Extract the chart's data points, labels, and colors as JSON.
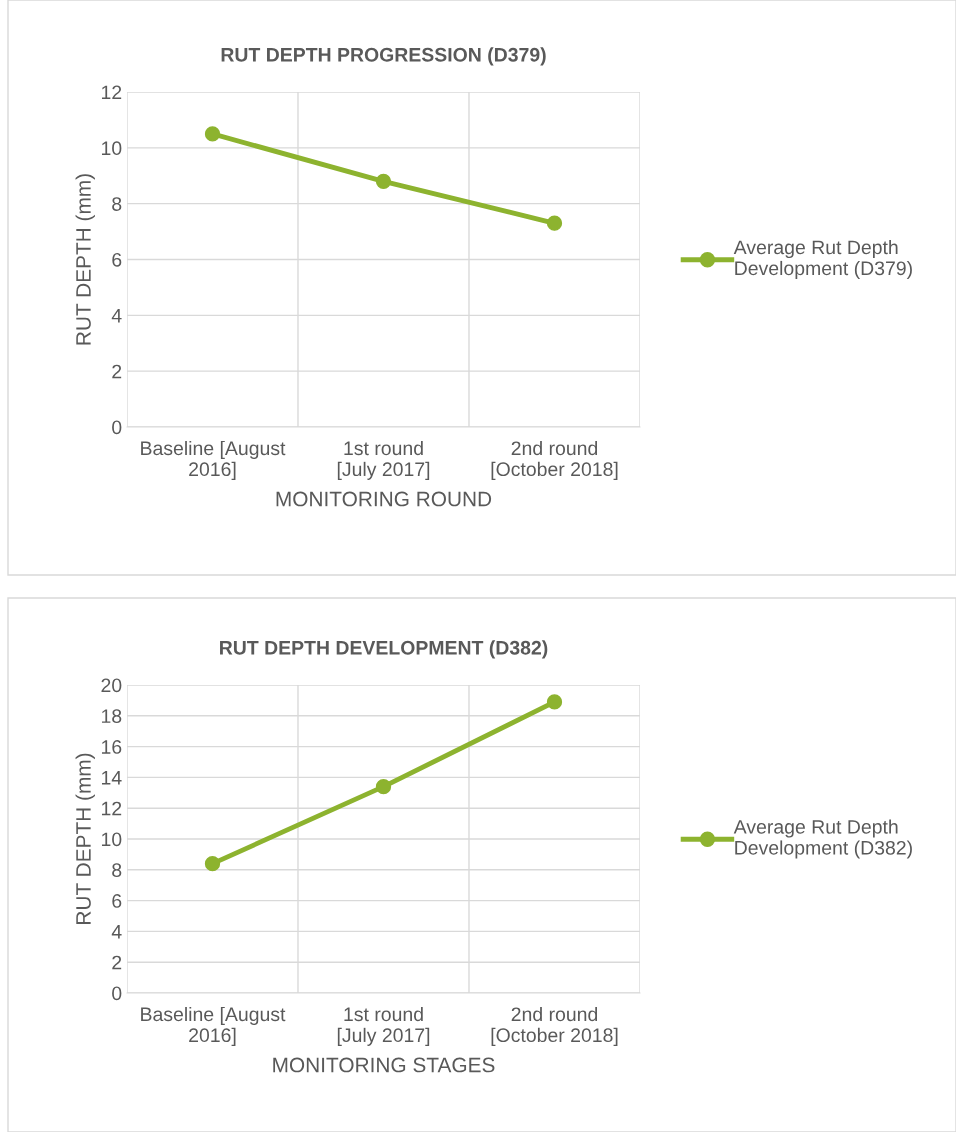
{
  "chart_data": [
    {
      "type": "line",
      "title": "RUT DEPTH PROGRESSION (D379)",
      "xlabel": "MONITORING ROUND",
      "ylabel": "RUT DEPTH (mm)",
      "categories": [
        "Baseline [August\n2016]",
        "1st round\n[July 2017]",
        "2nd round\n[October 2018]"
      ],
      "series": [
        {
          "name": "Average Rut Depth\nDevelopment (D379)",
          "color": "#8db32f",
          "values": [
            10.5,
            8.8,
            7.3
          ]
        }
      ],
      "ylim": [
        0,
        12
      ],
      "yticks": [
        0,
        2,
        4,
        6,
        8,
        10,
        12
      ],
      "grid": true,
      "legend": "right",
      "marker": "circle",
      "line_style": "solid"
    },
    {
      "type": "line",
      "title": "RUT DEPTH DEVELOPMENT (D382)",
      "xlabel": "MONITORING STAGES",
      "ylabel": "RUT DEPTH (mm)",
      "categories": [
        "Baseline [August\n2016]",
        "1st round\n[July 2017]",
        "2nd round\n[October 2018]"
      ],
      "series": [
        {
          "name": "Average Rut Depth\nDevelopment (D382)",
          "color": "#8db32f",
          "values": [
            8.4,
            13.4,
            18.9
          ]
        }
      ],
      "ylim": [
        0,
        20
      ],
      "yticks": [
        0,
        2,
        4,
        6,
        8,
        10,
        12,
        14,
        16,
        18,
        20
      ],
      "grid": true,
      "legend": "right",
      "marker": "circle",
      "line_style": "solid"
    }
  ]
}
